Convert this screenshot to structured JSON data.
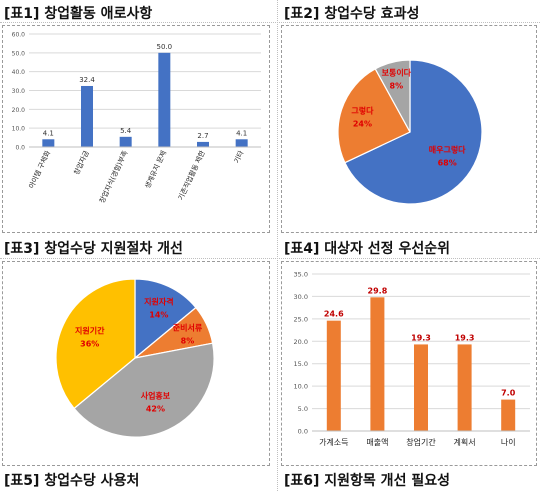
{
  "headers": {
    "t1": "[표1] 창업활동 애로사항",
    "t2": "[표2] 창업수당 효과성",
    "t3": "[표3] 창업수당 지원절차 개선",
    "t4": "[표4] 대상자 선정 우선순위",
    "t5": "[표5] 창업수당 사용처",
    "t6": "[표6] 지원항목 개선 필요성"
  },
  "chart_data": [
    {
      "type": "bar",
      "categories": [
        "아이템 구체화",
        "창업자금",
        "창업지식(경험)부족",
        "생계유지 문제",
        "기존직업활동 제한",
        "기타"
      ],
      "values": [
        4.1,
        32.4,
        5.4,
        50.0,
        2.7,
        4.1
      ],
      "ylim": [
        0,
        60
      ],
      "yticks": [
        "0.0",
        "10.0",
        "20.0",
        "30.0",
        "40.0",
        "50.0",
        "60.0"
      ],
      "grid": true,
      "color": "#4472c4",
      "title": "",
      "xlabel": "",
      "ylabel": ""
    },
    {
      "type": "pie",
      "labels": [
        "매우그렇다",
        "그렇다",
        "보통이다"
      ],
      "values": [
        68,
        24,
        8
      ],
      "value_labels": [
        "68%",
        "24%",
        "8%"
      ],
      "colors": [
        "#4472c4",
        "#ed7d31",
        "#a5a5a5"
      ]
    },
    {
      "type": "pie",
      "labels": [
        "지원자격",
        "준비서류",
        "사업홍보",
        "지원기간"
      ],
      "values": [
        14,
        8,
        42,
        36
      ],
      "value_labels": [
        "14%",
        "8%",
        "42%",
        "36%"
      ],
      "colors": [
        "#4472c4",
        "#ed7d31",
        "#a5a5a5",
        "#ffc000"
      ]
    },
    {
      "type": "bar",
      "categories": [
        "가계소득",
        "매출액",
        "창업기간",
        "계획서",
        "나이"
      ],
      "values": [
        24.6,
        29.8,
        19.3,
        19.3,
        7.0
      ],
      "ylim": [
        0,
        35
      ],
      "yticks": [
        "0.0",
        "5.0",
        "10.0",
        "15.0",
        "20.0",
        "25.0",
        "30.0",
        "35.0"
      ],
      "grid": true,
      "color": "#ed7d31",
      "label_color": "#c00000",
      "title": "",
      "xlabel": "",
      "ylabel": ""
    }
  ]
}
